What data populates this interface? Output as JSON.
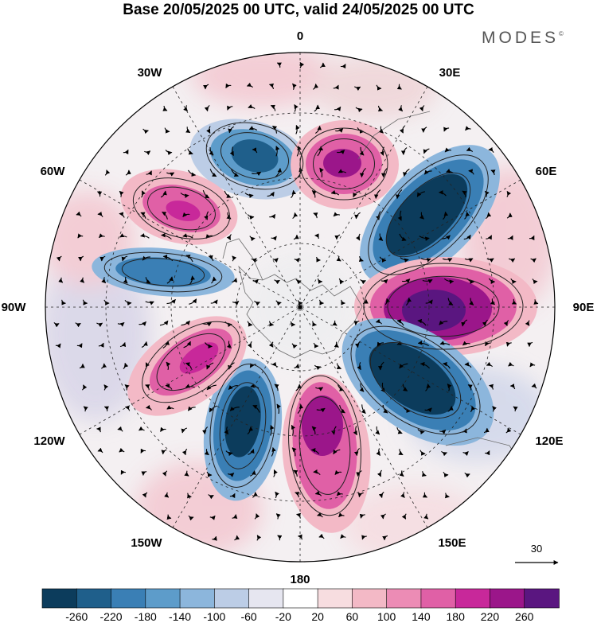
{
  "header": {
    "title": "Base 20/05/2025 00 UTC, valid 24/05/2025 00 UTC",
    "logo_text": "MODES",
    "logo_mark": "©"
  },
  "map": {
    "projection": "south-polar-stereographic",
    "longitude_labels": [
      "0",
      "30E",
      "60E",
      "90E",
      "120E",
      "150E",
      "180",
      "150W",
      "120W",
      "90W",
      "60W",
      "30W"
    ],
    "anomaly_centers": [
      {
        "sign": "negative",
        "near": "30W-0"
      },
      {
        "sign": "positive",
        "near": "0-30E"
      },
      {
        "sign": "negative",
        "near": "30E-60E"
      },
      {
        "sign": "positive",
        "near": "60W-30W"
      },
      {
        "sign": "negative",
        "near": "90W-60W"
      },
      {
        "sign": "positive",
        "near": "90E-120E"
      },
      {
        "sign": "negative",
        "near": "120E-150E"
      },
      {
        "sign": "positive",
        "near": "150E-180"
      },
      {
        "sign": "negative",
        "near": "150W-180"
      },
      {
        "sign": "positive",
        "near": "120W-90W"
      }
    ]
  },
  "vector_reference": {
    "value": "30"
  },
  "colorbar": {
    "ticks": [
      "-260",
      "-220",
      "-180",
      "-140",
      "-100",
      "-60",
      "-20",
      "20",
      "60",
      "100",
      "140",
      "180",
      "220",
      "260"
    ],
    "colors": [
      "#0c3c5c",
      "#1f5f8b",
      "#3a7fb5",
      "#5d9cca",
      "#8cb6dc",
      "#bccde6",
      "#e6e6f0",
      "#ffffff",
      "#f7dde0",
      "#f3b9c6",
      "#ec8cb5",
      "#e060a6",
      "#c8289a",
      "#9b168a",
      "#5a1680"
    ]
  }
}
